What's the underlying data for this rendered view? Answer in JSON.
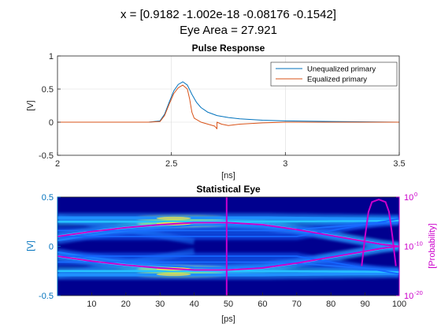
{
  "figure": {
    "title_line1": "x = [0.9182 -1.002e-18 -0.08176 -0.1542]",
    "title_line2": "Eye Area = 27.921"
  },
  "colors": {
    "unequalized": "#0072bd",
    "equalized": "#d95319",
    "magenta": "#cc00cc",
    "left_axis_teal": "#0072bd",
    "eye_background": "#00008f"
  },
  "chart_data": [
    {
      "type": "line",
      "title": "Pulse Response",
      "xlabel": "[ns]",
      "ylabel": "[V]",
      "xlim": [
        2,
        3.5
      ],
      "ylim": [
        -0.5,
        1
      ],
      "xticks": [
        "2",
        "2.5",
        "3",
        "3.5"
      ],
      "yticks": [
        "-0.5",
        "0",
        "0.5",
        "1"
      ],
      "grid": true,
      "legend_position": "top-right",
      "series": [
        {
          "name": "Unequalized primary",
          "color": "#0072bd",
          "x": [
            2.0,
            2.4,
            2.45,
            2.47,
            2.49,
            2.51,
            2.53,
            2.55,
            2.57,
            2.59,
            2.61,
            2.63,
            2.66,
            2.7,
            2.75,
            2.8,
            2.9,
            3.0,
            3.2,
            3.5
          ],
          "y": [
            0.0,
            0.0,
            0.02,
            0.12,
            0.3,
            0.47,
            0.57,
            0.61,
            0.56,
            0.42,
            0.3,
            0.22,
            0.15,
            0.1,
            0.07,
            0.05,
            0.03,
            0.02,
            0.01,
            0.0
          ]
        },
        {
          "name": "Equalized primary",
          "color": "#d95319",
          "x": [
            2.0,
            2.4,
            2.45,
            2.47,
            2.49,
            2.51,
            2.53,
            2.55,
            2.57,
            2.58,
            2.59,
            2.6,
            2.63,
            2.66,
            2.69,
            2.7,
            2.7,
            2.72,
            2.75,
            2.8,
            2.9,
            3.0,
            3.2,
            3.5
          ],
          "y": [
            0.0,
            0.0,
            0.01,
            0.1,
            0.27,
            0.43,
            0.52,
            0.56,
            0.5,
            0.35,
            0.15,
            0.06,
            0.0,
            -0.03,
            -0.06,
            -0.1,
            0.0,
            -0.03,
            -0.05,
            -0.03,
            -0.01,
            0.0,
            0.0,
            0.0
          ]
        }
      ]
    },
    {
      "type": "heatmap",
      "title": "Statistical Eye",
      "xlabel": "[ps]",
      "ylabel": "[V]",
      "y2label": "[Probability]",
      "xlim": [
        0,
        100
      ],
      "ylim": [
        -0.5,
        0.5
      ],
      "xticks": [
        "10",
        "20",
        "30",
        "40",
        "50",
        "60",
        "70",
        "80",
        "90",
        "100"
      ],
      "yticks": [
        "-0.5",
        "0",
        "0.5"
      ],
      "y2ticks": [
        "10",
        "10",
        "10"
      ],
      "y2tick_exponents": [
        "0",
        "-10",
        "-20"
      ],
      "eye_opening_upper": {
        "x": [
          0,
          10,
          20,
          30,
          40,
          50,
          60,
          70,
          80,
          90,
          95,
          100
        ],
        "y": [
          0.1,
          0.15,
          0.19,
          0.22,
          0.24,
          0.24,
          0.22,
          0.17,
          0.11,
          0.05,
          0.02,
          0.0
        ]
      },
      "eye_opening_lower": {
        "x": [
          0,
          10,
          20,
          30,
          40,
          50,
          60,
          70,
          80,
          90,
          95,
          100
        ],
        "y": [
          -0.1,
          -0.15,
          -0.19,
          -0.22,
          -0.24,
          -0.24,
          -0.22,
          -0.17,
          -0.11,
          -0.05,
          -0.02,
          0.0
        ]
      },
      "sampling_time_ps": 49.5,
      "bathtub": {
        "x": [
          89,
          90,
          91,
          92,
          94,
          96,
          97,
          98,
          99
        ],
        "log10_probability": [
          -14,
          -8,
          -3,
          -1,
          -0.5,
          -1,
          -3,
          -8,
          -14
        ]
      }
    }
  ]
}
